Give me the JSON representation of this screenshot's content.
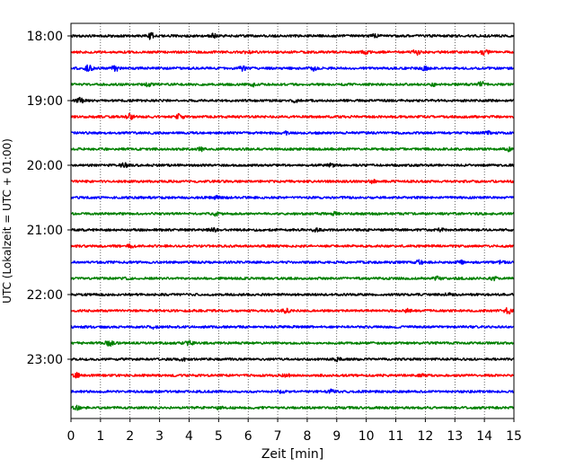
{
  "chart_data": {
    "type": "line",
    "title": "",
    "xlabel": "Zeit  [min]",
    "ylabel": "UTC (Lokalzeit = UTC + 01:00)",
    "xlim": [
      0,
      15
    ],
    "x_ticks": [
      0,
      1,
      2,
      3,
      4,
      5,
      6,
      7,
      8,
      9,
      10,
      11,
      12,
      13,
      14,
      15
    ],
    "x_tick_labels": [
      "0",
      "1",
      "2",
      "3",
      "4",
      "5",
      "6",
      "7",
      "8",
      "9",
      "10",
      "11",
      "12",
      "13",
      "14",
      "15"
    ],
    "y_tick_labels": [
      "18:00",
      "19:00",
      "20:00",
      "21:00",
      "22:00",
      "23:00"
    ],
    "y_tick_rows": [
      0,
      4,
      8,
      12,
      16,
      20
    ],
    "trace_interval_min": 15,
    "grid": "vertical-dotted",
    "color_cycle": [
      "#000000",
      "#ff0000",
      "#0000ff",
      "#008000"
    ],
    "series": [
      {
        "start": "18:00",
        "color": "#000000",
        "events": [
          [
            2.7,
            3.0
          ],
          [
            4.8,
            2.0
          ],
          [
            10.3,
            1.6
          ]
        ]
      },
      {
        "start": "18:15",
        "color": "#ff0000",
        "events": [
          [
            6.0,
            1.4
          ],
          [
            11.7,
            2.6
          ],
          [
            14.0,
            2.4
          ],
          [
            10.0,
            1.6
          ]
        ]
      },
      {
        "start": "18:30",
        "color": "#0000ff",
        "events": [
          [
            0.6,
            3.0
          ],
          [
            1.5,
            2.8
          ],
          [
            5.8,
            2.2
          ],
          [
            8.2,
            2.0
          ],
          [
            12.0,
            1.8
          ]
        ]
      },
      {
        "start": "18:45",
        "color": "#008000",
        "events": [
          [
            6.2,
            1.6
          ],
          [
            12.3,
            1.6
          ],
          [
            13.9,
            2.8
          ],
          [
            2.6,
            1.4
          ]
        ]
      },
      {
        "start": "19:00",
        "color": "#000000",
        "events": [
          [
            0.3,
            2.4
          ],
          [
            7.6,
            1.4
          ]
        ]
      },
      {
        "start": "19:15",
        "color": "#ff0000",
        "events": [
          [
            2.0,
            2.6
          ],
          [
            3.7,
            3.0
          ]
        ]
      },
      {
        "start": "19:30",
        "color": "#0000ff",
        "events": [
          [
            7.3,
            1.4
          ],
          [
            14.1,
            1.4
          ]
        ]
      },
      {
        "start": "19:45",
        "color": "#008000",
        "events": [
          [
            4.4,
            1.6
          ],
          [
            14.8,
            2.0
          ]
        ]
      },
      {
        "start": "20:00",
        "color": "#000000",
        "events": [
          [
            1.8,
            2.0
          ],
          [
            8.8,
            1.4
          ]
        ]
      },
      {
        "start": "20:15",
        "color": "#ff0000",
        "events": [
          [
            10.2,
            1.4
          ]
        ]
      },
      {
        "start": "20:30",
        "color": "#0000ff",
        "events": [
          [
            4.9,
            1.3
          ]
        ]
      },
      {
        "start": "20:45",
        "color": "#008000",
        "events": [
          [
            4.9,
            1.6
          ],
          [
            8.9,
            1.4
          ]
        ]
      },
      {
        "start": "21:00",
        "color": "#000000",
        "events": [
          [
            4.8,
            2.0
          ],
          [
            12.5,
            1.4
          ],
          [
            8.3,
            1.4
          ]
        ]
      },
      {
        "start": "21:15",
        "color": "#ff0000",
        "events": [
          [
            2.0,
            1.4
          ]
        ]
      },
      {
        "start": "21:30",
        "color": "#0000ff",
        "events": [
          [
            11.8,
            1.8
          ],
          [
            13.2,
            1.4
          ],
          [
            14.6,
            1.4
          ]
        ]
      },
      {
        "start": "21:45",
        "color": "#008000",
        "events": [
          [
            2.0,
            2.0
          ],
          [
            12.4,
            1.4
          ],
          [
            14.3,
            1.6
          ]
        ]
      },
      {
        "start": "22:00",
        "color": "#000000",
        "events": [
          [
            12.8,
            1.4
          ]
        ]
      },
      {
        "start": "22:15",
        "color": "#ff0000",
        "events": [
          [
            7.3,
            1.8
          ],
          [
            14.8,
            2.6
          ],
          [
            11.4,
            1.4
          ]
        ]
      },
      {
        "start": "22:30",
        "color": "#0000ff",
        "events": [
          [
            2.8,
            1.4
          ]
        ]
      },
      {
        "start": "22:45",
        "color": "#008000",
        "events": [
          [
            1.3,
            2.6
          ],
          [
            4.0,
            2.0
          ]
        ]
      },
      {
        "start": "23:00",
        "color": "#000000",
        "events": [
          [
            3.8,
            1.6
          ],
          [
            9.0,
            1.6
          ]
        ]
      },
      {
        "start": "23:15",
        "color": "#ff0000",
        "events": [
          [
            0.2,
            2.4
          ],
          [
            7.3,
            1.8
          ],
          [
            11.9,
            1.4
          ]
        ]
      },
      {
        "start": "23:30",
        "color": "#0000ff",
        "events": [
          [
            7.1,
            1.6
          ],
          [
            8.8,
            1.6
          ]
        ]
      },
      {
        "start": "23:45",
        "color": "#008000",
        "events": [
          [
            0.2,
            1.6
          ],
          [
            5.0,
            1.4
          ]
        ]
      }
    ]
  }
}
